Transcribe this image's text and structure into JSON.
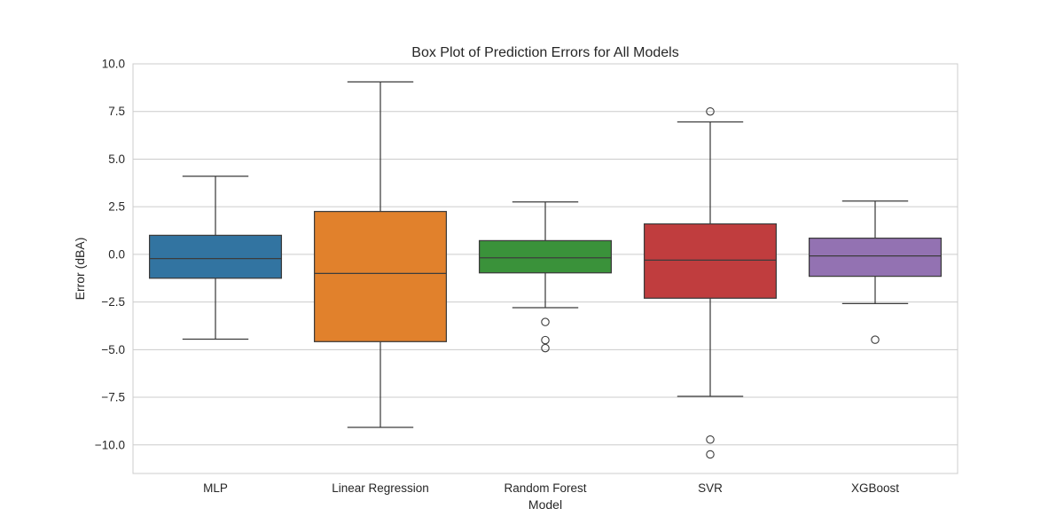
{
  "chart_data": {
    "type": "box",
    "title": "Box Plot of Prediction Errors for All Models",
    "xlabel": "Model",
    "ylabel": "Error (dBA)",
    "ylim": [
      -11.5,
      10.0
    ],
    "yticks": [
      10.0,
      7.5,
      5.0,
      2.5,
      0.0,
      -2.5,
      -5.0,
      -7.5,
      -10.0
    ],
    "ytick_labels": [
      "10.0",
      "7.5",
      "5.0",
      "2.5",
      "0.0",
      "−2.5",
      "−5.0",
      "−7.5",
      "−10.0"
    ],
    "grid": true,
    "categories": [
      "MLP",
      "Linear Regression",
      "Random Forest",
      "SVR",
      "XGBoost"
    ],
    "series": [
      {
        "category": "MLP",
        "color": "#3274a1",
        "whisker_low": -4.45,
        "q1": -1.25,
        "median": -0.22,
        "q3": 1.0,
        "whisker_high": 4.1,
        "outliers": []
      },
      {
        "category": "Linear Regression",
        "color": "#e1812c",
        "whisker_low": -9.08,
        "q1": -4.58,
        "median": -1.0,
        "q3": 2.25,
        "whisker_high": 9.05,
        "outliers": []
      },
      {
        "category": "Random Forest",
        "color": "#3a923a",
        "whisker_low": -2.8,
        "q1": -0.97,
        "median": -0.18,
        "q3": 0.72,
        "whisker_high": 2.75,
        "outliers": [
          -3.55,
          -4.5,
          -4.92
        ]
      },
      {
        "category": "SVR",
        "color": "#c03d3e",
        "whisker_low": -7.45,
        "q1": -2.3,
        "median": -0.3,
        "q3": 1.6,
        "whisker_high": 6.95,
        "outliers": [
          7.5,
          -9.72,
          -10.5
        ]
      },
      {
        "category": "XGBoost",
        "color": "#9372b2",
        "whisker_low": -2.58,
        "q1": -1.15,
        "median": -0.08,
        "q3": 0.85,
        "whisker_high": 2.8,
        "outliers": [
          -4.48
        ]
      }
    ]
  }
}
